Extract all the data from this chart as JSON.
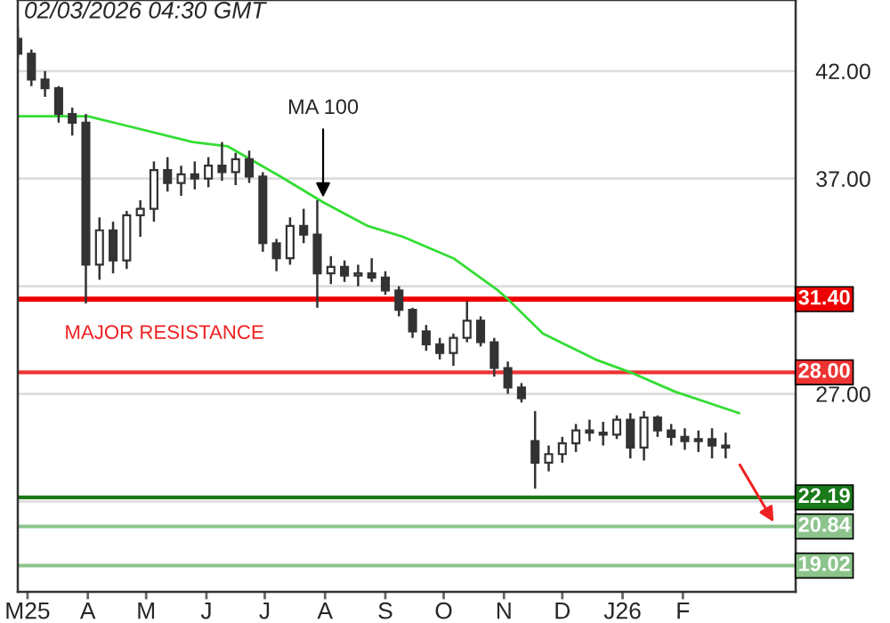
{
  "chart_data": {
    "type": "candlestick",
    "annotations": [
      "02/03/2026 04:30 GMT",
      "MAJOR RESISTANCE",
      {
        "text": "MA 100",
        "x": "2025-07-31",
        "y": 35.9
      }
    ],
    "x": [
      "2025-02-24",
      "2025-03-03",
      "2025-03-10",
      "2025-03-17",
      "2025-03-24",
      "2025-03-31",
      "2025-04-07",
      "2025-04-14",
      "2025-04-21",
      "2025-04-28",
      "2025-05-05",
      "2025-05-12",
      "2025-05-19",
      "2025-05-26",
      "2025-06-02",
      "2025-06-09",
      "2025-06-16",
      "2025-06-23",
      "2025-06-30",
      "2025-07-07",
      "2025-07-14",
      "2025-07-21",
      "2025-07-28",
      "2025-08-04",
      "2025-08-11",
      "2025-08-18",
      "2025-08-25",
      "2025-09-01",
      "2025-09-08",
      "2025-09-15",
      "2025-09-22",
      "2025-09-29",
      "2025-10-06",
      "2025-10-13",
      "2025-10-20",
      "2025-10-27",
      "2025-11-03",
      "2025-11-10",
      "2025-11-17",
      "2025-11-24",
      "2025-12-01",
      "2025-12-08",
      "2025-12-15",
      "2025-12-22",
      "2025-12-29",
      "2026-01-05",
      "2026-01-12",
      "2026-01-19",
      "2026-01-26",
      "2026-02-02",
      "2026-02-09",
      "2026-02-16",
      "2026-02-23"
    ],
    "ohlc": [
      [
        43.5,
        44.0,
        42.6,
        42.8
      ],
      [
        42.8,
        43.0,
        41.3,
        41.6
      ],
      [
        41.6,
        42.0,
        40.8,
        41.2
      ],
      [
        41.2,
        41.3,
        39.6,
        40.0
      ],
      [
        40.0,
        40.3,
        39.0,
        39.6
      ],
      [
        39.6,
        40.0,
        31.2,
        33.0
      ],
      [
        33.0,
        35.2,
        32.3,
        34.6
      ],
      [
        34.6,
        35.0,
        32.6,
        33.2
      ],
      [
        33.2,
        35.5,
        32.8,
        35.3
      ],
      [
        35.3,
        36.0,
        34.3,
        35.6
      ],
      [
        35.6,
        37.8,
        35.0,
        37.4
      ],
      [
        37.4,
        38.0,
        36.4,
        36.8
      ],
      [
        36.8,
        37.6,
        36.2,
        37.2
      ],
      [
        37.2,
        37.8,
        36.5,
        37.0
      ],
      [
        37.0,
        38.0,
        36.6,
        37.6
      ],
      [
        37.6,
        38.7,
        36.9,
        37.3
      ],
      [
        37.3,
        38.2,
        36.7,
        37.9
      ],
      [
        37.9,
        38.3,
        36.8,
        37.1
      ],
      [
        37.1,
        37.3,
        33.6,
        34.0
      ],
      [
        34.0,
        34.2,
        32.7,
        33.3
      ],
      [
        33.3,
        35.2,
        33.0,
        34.8
      ],
      [
        34.8,
        35.6,
        34.0,
        34.4
      ],
      [
        34.4,
        36.0,
        31.0,
        32.6
      ],
      [
        32.6,
        33.4,
        32.1,
        32.9
      ],
      [
        32.9,
        33.2,
        32.2,
        32.5
      ],
      [
        32.5,
        33.0,
        32.0,
        32.6
      ],
      [
        32.6,
        33.3,
        32.2,
        32.4
      ],
      [
        32.4,
        32.7,
        31.6,
        31.8
      ],
      [
        31.8,
        32.0,
        30.6,
        30.9
      ],
      [
        30.9,
        31.0,
        29.6,
        29.9
      ],
      [
        29.9,
        30.2,
        29.0,
        29.3
      ],
      [
        29.3,
        29.6,
        28.6,
        28.9
      ],
      [
        28.9,
        29.8,
        28.3,
        29.6
      ],
      [
        29.6,
        31.3,
        29.4,
        30.4
      ],
      [
        30.4,
        30.6,
        29.2,
        29.4
      ],
      [
        29.4,
        29.6,
        27.8,
        28.2
      ],
      [
        28.2,
        28.5,
        27.0,
        27.3
      ],
      [
        27.3,
        27.5,
        26.6,
        26.8
      ],
      [
        24.8,
        26.2,
        22.6,
        23.8
      ],
      [
        23.8,
        24.6,
        23.4,
        24.2
      ],
      [
        24.2,
        25.0,
        23.8,
        24.7
      ],
      [
        24.7,
        25.6,
        24.3,
        25.3
      ],
      [
        25.3,
        25.8,
        24.8,
        25.2
      ],
      [
        25.2,
        25.7,
        24.6,
        25.1
      ],
      [
        25.1,
        26.0,
        24.9,
        25.8
      ],
      [
        25.8,
        26.1,
        24.0,
        24.5
      ],
      [
        24.5,
        26.2,
        23.9,
        25.9
      ],
      [
        25.9,
        26.0,
        25.0,
        25.3
      ],
      [
        25.3,
        25.6,
        24.6,
        25.0
      ],
      [
        25.0,
        25.4,
        24.4,
        24.8
      ],
      [
        24.8,
        25.3,
        24.3,
        24.9
      ],
      [
        24.9,
        25.4,
        24.0,
        24.6
      ],
      [
        24.6,
        25.2,
        24.0,
        24.5
      ]
    ],
    "color": "#333333",
    "series": [
      {
        "type": "line",
        "color": "#33dd33",
        "x": [
          "2025-02-24",
          "2025-04-01",
          "2025-04-19",
          "2025-05-25",
          "2025-06-12",
          "2025-07-09",
          "2025-07-31",
          "2025-08-23",
          "2025-09-10",
          "2025-10-06",
          "2025-10-29",
          "2025-11-03",
          "2025-11-21",
          "2025-12-18",
          "2026-01-05",
          "2026-01-28",
          "2026-03-02"
        ],
        "values": [
          39.9,
          39.9,
          39.5,
          38.7,
          38.5,
          37.1,
          35.9,
          34.8,
          34.3,
          33.3,
          31.8,
          31.4,
          29.8,
          28.6,
          28.0,
          27.1,
          26.1
        ]
      }
    ],
    "xlim": [
      "2025-02-24",
      "2026-03-31"
    ],
    "xticks": [
      {
        "value": "2025-03-01",
        "label": "M25"
      },
      {
        "value": "2025-04-01",
        "label": "A"
      },
      {
        "value": "2025-05-01",
        "label": "M"
      },
      {
        "value": "2025-06-01",
        "label": "J"
      },
      {
        "value": "2025-07-01",
        "label": "J"
      },
      {
        "value": "2025-08-01",
        "label": "A"
      },
      {
        "value": "2025-09-01",
        "label": "S"
      },
      {
        "value": "2025-10-01",
        "label": "O"
      },
      {
        "value": "2025-11-01",
        "label": "N"
      },
      {
        "value": "2025-12-01",
        "label": "D"
      },
      {
        "value": "2026-01-01",
        "label": "J26"
      },
      {
        "value": "2026-02-01",
        "label": "F"
      }
    ],
    "ylim": [
      17.8,
      45.3
    ],
    "yticks": [
      {
        "value": 22,
        "label": null
      },
      {
        "value": 27,
        "label": "27.00"
      },
      {
        "value": 32,
        "label": null
      },
      {
        "value": 37,
        "label": "37.00"
      },
      {
        "value": 42,
        "label": "42.00"
      }
    ],
    "grid": "y",
    "ref_lines": [
      {
        "axis": "y",
        "value": 31.4,
        "label": "31.40",
        "color": "#ee0000"
      },
      {
        "axis": "y",
        "value": 28.0,
        "label": "28.00",
        "color": "#ee3333"
      },
      {
        "axis": "y",
        "value": 22.19,
        "label": "22.19",
        "color": "#1a7a1a"
      },
      {
        "axis": "y",
        "value": 20.84,
        "label": "20.84",
        "color": "#8cc48c"
      },
      {
        "axis": "y",
        "value": 19.02,
        "label": "19.02",
        "color": "#8cc48c"
      }
    ]
  }
}
